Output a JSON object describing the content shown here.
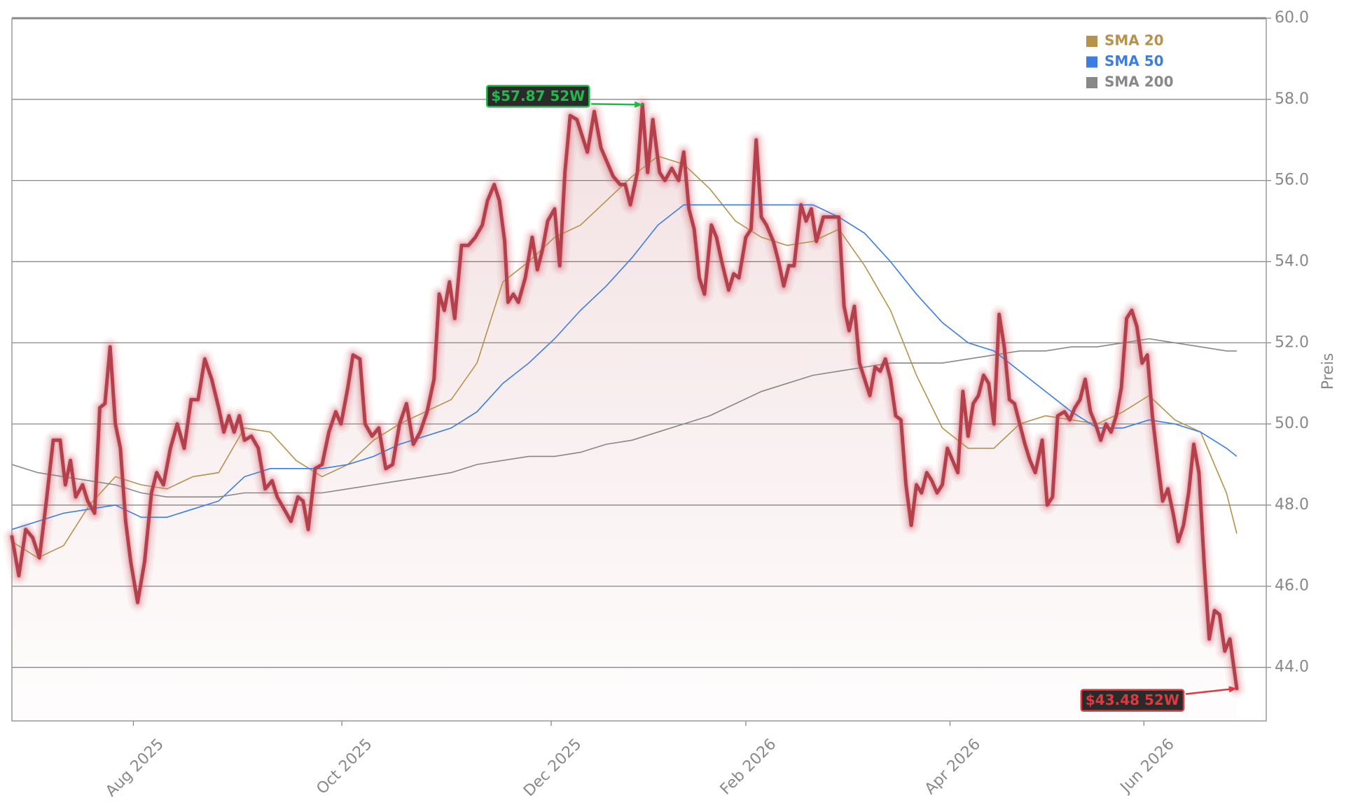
{
  "chart_data": {
    "type": "line",
    "ylabel": "Preis",
    "xlim": [
      2025.4831,
      2026.5176
    ],
    "ylim": [
      42.68,
      60
    ],
    "xticks": [
      {
        "value": 2025.5833,
        "label": "Aug 2025"
      },
      {
        "value": 2025.7552,
        "label": "Oct 2025"
      },
      {
        "value": 2025.9278,
        "label": "Dec 2025"
      },
      {
        "value": 2026.0884,
        "label": "Feb 2026"
      },
      {
        "value": 2026.2568,
        "label": "Apr 2026"
      },
      {
        "value": 2026.4167,
        "label": "Jun 2026"
      }
    ],
    "yticks": [
      {
        "value": 44,
        "label": "44.0"
      },
      {
        "value": 46,
        "label": "46.0"
      },
      {
        "value": 48,
        "label": "48.0"
      },
      {
        "value": 50,
        "label": "50.0"
      },
      {
        "value": 52,
        "label": "52.0"
      },
      {
        "value": 54,
        "label": "54.0"
      },
      {
        "value": 56,
        "label": "56.0"
      },
      {
        "value": 58,
        "label": "58.0"
      },
      {
        "value": 60,
        "label": "60.0"
      }
    ],
    "grid": true,
    "legend": "upper right",
    "price": {
      "color": "#b3404a",
      "x": [
        2025.4831,
        2025.4888,
        2025.4945,
        2025.5002,
        2025.5058,
        2025.5115,
        2025.5172,
        2025.5229,
        2025.5272,
        2025.5314,
        2025.5357,
        2025.5414,
        2025.5456,
        2025.5513,
        2025.5556,
        2025.5598,
        2025.5641,
        2025.5684,
        2025.5726,
        2025.5769,
        2025.5811,
        2025.5868,
        2025.5925,
        2025.5982,
        2025.6025,
        2025.6081,
        2025.6138,
        2025.6195,
        2025.6252,
        2025.6309,
        2025.6366,
        2025.6422,
        2025.6479,
        2025.6536,
        2025.6579,
        2025.6621,
        2025.6664,
        2025.6707,
        2025.6749,
        2025.6806,
        2025.6863,
        2025.692,
        2025.6977,
        2025.7019,
        2025.7076,
        2025.7133,
        2025.719,
        2025.7232,
        2025.7275,
        2025.7332,
        2025.7389,
        2025.7445,
        2025.7502,
        2025.7545,
        2025.7602,
        2025.7644,
        2025.7701,
        2025.7744,
        2025.7801,
        2025.7857,
        2025.7914,
        2025.7971,
        2025.8028,
        2025.8085,
        2025.8142,
        2025.8198,
        2025.8255,
        2025.8312,
        2025.8355,
        2025.8397,
        2025.844,
        2025.8483,
        2025.8539,
        2025.8596,
        2025.8653,
        2025.871,
        2025.8753,
        2025.8809,
        2025.8852,
        2025.8895,
        2025.8923,
        2025.8966,
        2025.9008,
        2025.9065,
        2025.9122,
        2025.9165,
        2025.9207,
        2025.925,
        2025.9307,
        2025.9349,
        2025.9392,
        2025.9435,
        2025.9491,
        2025.9534,
        2025.9577,
        2025.9634,
        2025.969,
        2025.9747,
        2025.979,
        2025.9847,
        2025.9889,
        2025.9932,
        2025.9989,
        2026.0031,
        2026.0074,
        2026.0117,
        2026.0173,
        2026.0216,
        2026.0273,
        2026.033,
        2026.0372,
        2026.0415,
        2026.0458,
        2026.05,
        2026.0543,
        2026.06,
        2026.0642,
        2026.0685,
        2026.0742,
        2026.0784,
        2026.0827,
        2026.0884,
        2026.0927,
        2026.0969,
        2026.1012,
        2026.1054,
        2026.1111,
        2026.1154,
        2026.1197,
        2026.1239,
        2026.1282,
        2026.1339,
        2026.1381,
        2026.1424,
        2026.1466,
        2026.1523,
        2026.1594,
        2026.1651,
        2026.1694,
        2026.1736,
        2026.1779,
        2026.1822,
        2026.1864,
        2026.1907,
        2026.195,
        2026.1992,
        2026.2035,
        2026.2077,
        2026.212,
        2026.2163,
        2026.2205,
        2026.2248,
        2026.2291,
        2026.2333,
        2026.2376,
        2026.2418,
        2026.2461,
        2026.2504,
        2026.2546,
        2026.2589,
        2026.2632,
        2026.2674,
        2026.2717,
        2026.2759,
        2026.2802,
        2026.2845,
        2026.2887,
        2026.293,
        2026.2973,
        2026.3015,
        2026.3058,
        2026.31,
        2026.3143,
        2026.3186,
        2026.3228,
        2026.3271,
        2026.3328,
        2026.337,
        2026.3413,
        2026.3456,
        2026.3512,
        2026.3555,
        2026.3598,
        2026.364,
        2026.3683,
        2026.3726,
        2026.3768,
        2026.3811,
        2026.3854,
        2026.3896,
        2026.3939,
        2026.3981,
        2026.4024,
        2026.4067,
        2026.4109,
        2026.4152,
        2026.4195,
        2026.4237,
        2026.428,
        2026.4322,
        2026.4365,
        2026.4408,
        2026.445,
        2026.4493,
        2026.4536,
        2026.4578,
        2026.4621,
        2026.4663,
        2026.4706,
        2026.4749,
        2026.4791,
        2026.4834,
        2026.4876,
        2026.4933
      ],
      "values": [
        47.22,
        46.26,
        47.4,
        47.2,
        46.7,
        48.1,
        49.6,
        49.6,
        48.5,
        49.1,
        48.2,
        48.5,
        48.1,
        47.8,
        50.4,
        50.5,
        51.9,
        50.0,
        49.4,
        47.6,
        46.6,
        45.6,
        46.6,
        48.3,
        48.8,
        48.5,
        49.4,
        50.0,
        49.4,
        50.6,
        50.6,
        51.6,
        51.1,
        50.4,
        49.8,
        50.2,
        49.8,
        50.2,
        49.6,
        49.7,
        49.4,
        48.4,
        48.6,
        48.2,
        47.9,
        47.6,
        48.2,
        48.1,
        47.4,
        48.9,
        49.0,
        49.8,
        50.3,
        50.0,
        50.9,
        51.7,
        51.6,
        50.0,
        49.7,
        49.9,
        48.9,
        49.0,
        50.0,
        50.5,
        49.5,
        49.8,
        50.3,
        51.1,
        53.2,
        52.8,
        53.5,
        52.6,
        54.4,
        54.4,
        54.6,
        54.9,
        55.5,
        55.9,
        55.5,
        54.5,
        53.0,
        53.2,
        53.0,
        53.6,
        54.6,
        53.8,
        54.3,
        55.0,
        55.3,
        53.9,
        56.2,
        57.6,
        57.5,
        57.1,
        56.7,
        57.7,
        56.8,
        56.4,
        56.1,
        55.9,
        55.9,
        55.4,
        56.2,
        57.87,
        56.2,
        57.5,
        56.2,
        56.0,
        56.3,
        56.0,
        56.7,
        55.3,
        54.8,
        53.6,
        53.2,
        54.9,
        54.6,
        54.0,
        53.3,
        53.7,
        53.6,
        54.6,
        54.8,
        57.0,
        55.1,
        54.9,
        54.5,
        54.0,
        53.4,
        53.9,
        53.9,
        55.4,
        55.0,
        55.3,
        54.5,
        55.1,
        55.1,
        55.1,
        52.9,
        52.3,
        52.9,
        51.5,
        51.1,
        50.7,
        51.4,
        51.3,
        51.6,
        51.1,
        50.2,
        50.1,
        48.5,
        47.5,
        48.5,
        48.3,
        48.8,
        48.6,
        48.3,
        48.5,
        49.4,
        49.1,
        48.8,
        50.8,
        49.7,
        50.5,
        50.7,
        51.2,
        51.0,
        50.0,
        52.7,
        51.9,
        50.6,
        50.5,
        50.0,
        49.5,
        49.1,
        48.8,
        49.6,
        48.0,
        48.2,
        50.2,
        50.3,
        50.1,
        50.4,
        50.6,
        51.1,
        50.3,
        50.0,
        49.6,
        50.0,
        49.8,
        50.2,
        50.9,
        52.6,
        52.8,
        52.4,
        51.5,
        51.7,
        50.2,
        49.1,
        48.1,
        48.4,
        47.8,
        47.1,
        47.5,
        48.3,
        49.5,
        48.8,
        46.6,
        44.7,
        45.4,
        45.3,
        44.4,
        44.7,
        43.48
      ]
    },
    "sma_x": [
      2025.4831,
      2025.5044,
      2025.5257,
      2025.547,
      2025.5684,
      2025.5897,
      2025.611,
      2025.6323,
      2025.6536,
      2025.6749,
      2025.6962,
      2025.7175,
      2025.7389,
      2025.7602,
      2025.7815,
      2025.8028,
      2025.8241,
      2025.8454,
      2025.8667,
      2025.888,
      2025.9094,
      2025.9307,
      2025.952,
      2025.9733,
      2025.9946,
      2026.0159,
      2026.0372,
      2026.0585,
      2026.0799,
      2026.1012,
      2026.1225,
      2026.1438,
      2026.1651,
      2026.1864,
      2026.2077,
      2026.2291,
      2026.2504,
      2026.2717,
      2026.293,
      2026.3143,
      2026.3356,
      2026.3569,
      2026.3782,
      2026.3996,
      2026.4209,
      2026.4422,
      2026.4635,
      2026.4848,
      2026.4933
    ],
    "series": [
      {
        "name": "SMA 20",
        "color": "#b8914a",
        "values": [
          47.1,
          46.7,
          47.0,
          48.0,
          48.7,
          48.5,
          48.4,
          48.7,
          48.8,
          49.9,
          49.8,
          49.1,
          48.7,
          49.0,
          49.6,
          50.0,
          50.3,
          50.6,
          51.5,
          53.5,
          54.0,
          54.6,
          54.9,
          55.5,
          56.1,
          56.6,
          56.4,
          55.8,
          55.0,
          54.6,
          54.4,
          54.5,
          54.8,
          53.9,
          52.8,
          51.2,
          49.9,
          49.4,
          49.4,
          50.0,
          50.2,
          50.1,
          50.0,
          50.3,
          50.7,
          50.1,
          49.8,
          48.3,
          47.3
        ]
      },
      {
        "name": "SMA 50",
        "color": "#3b7de0",
        "values": [
          47.4,
          47.6,
          47.8,
          47.9,
          48.0,
          47.7,
          47.7,
          47.9,
          48.1,
          48.7,
          48.9,
          48.9,
          48.9,
          49.0,
          49.2,
          49.5,
          49.7,
          49.9,
          50.3,
          51.0,
          51.5,
          52.1,
          52.8,
          53.4,
          54.1,
          54.9,
          55.4,
          55.4,
          55.4,
          55.4,
          55.4,
          55.4,
          55.1,
          54.7,
          54.0,
          53.2,
          52.5,
          52.0,
          51.8,
          51.3,
          50.8,
          50.3,
          49.9,
          49.9,
          50.1,
          50.0,
          49.8,
          49.4,
          49.2
        ]
      },
      {
        "name": "SMA 200",
        "color": "#888888",
        "values": [
          49.0,
          48.8,
          48.7,
          48.6,
          48.5,
          48.3,
          48.2,
          48.2,
          48.2,
          48.3,
          48.3,
          48.3,
          48.3,
          48.4,
          48.5,
          48.6,
          48.7,
          48.8,
          49.0,
          49.1,
          49.2,
          49.2,
          49.3,
          49.5,
          49.6,
          49.8,
          50.0,
          50.2,
          50.5,
          50.8,
          51.0,
          51.2,
          51.3,
          51.4,
          51.5,
          51.5,
          51.5,
          51.6,
          51.7,
          51.8,
          51.8,
          51.9,
          51.9,
          52.0,
          52.1,
          52.0,
          51.9,
          51.8,
          51.8
        ]
      }
    ],
    "annotations": [
      {
        "text": "$57.87 52W",
        "color": "#22b84c",
        "x": 2026.0031,
        "y": 57.87
      },
      {
        "text": "$43.48 52W",
        "color": "#e0383e",
        "x": 2026.4933,
        "y": 43.48
      }
    ]
  }
}
